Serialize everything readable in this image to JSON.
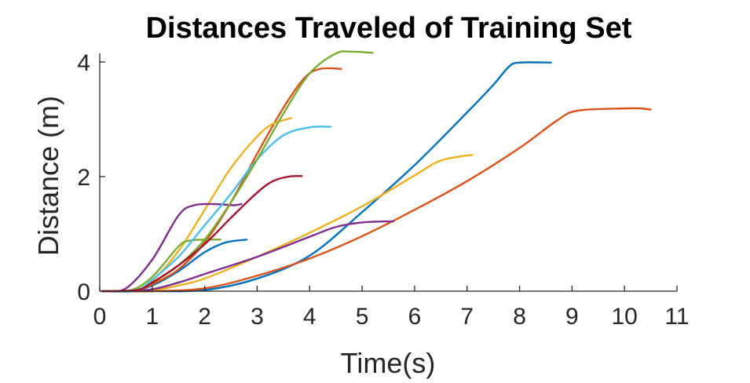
{
  "chart_data": {
    "type": "line",
    "title": "Distances Traveled of Training Set",
    "xlabel": "Time(s)",
    "ylabel": "Distance (m)",
    "xlim": [
      0,
      11
    ],
    "ylim": [
      0,
      4.2
    ],
    "xticks": [
      0,
      1,
      2,
      3,
      4,
      5,
      6,
      7,
      8,
      9,
      10,
      11
    ],
    "yticks": [
      0,
      2,
      4
    ],
    "grid": false,
    "legend": "none",
    "series": [
      {
        "color": "#0072BD",
        "x": [
          0.05,
          1.0,
          2.0,
          3.0,
          4.0,
          5.0,
          6.0,
          7.0,
          7.5,
          7.8,
          8.0,
          8.6
        ],
        "y": [
          0.0,
          0.0,
          0.02,
          0.22,
          0.62,
          1.38,
          2.2,
          3.12,
          3.6,
          3.92,
          3.99,
          3.99
        ]
      },
      {
        "color": "#D95319",
        "x": [
          0.05,
          1.0,
          2.0,
          3.0,
          4.0,
          5.0,
          6.0,
          7.0,
          8.0,
          8.7,
          9.1,
          10.0,
          10.3,
          10.5
        ],
        "y": [
          0.0,
          0.0,
          0.05,
          0.27,
          0.57,
          0.96,
          1.42,
          1.92,
          2.5,
          2.97,
          3.15,
          3.19,
          3.19,
          3.17
        ]
      },
      {
        "color": "#EDB120",
        "x": [
          0.05,
          1.0,
          1.5,
          2.0,
          3.0,
          4.0,
          5.0,
          6.0,
          6.5,
          7.1
        ],
        "y": [
          0.0,
          0.02,
          0.1,
          0.22,
          0.6,
          1.02,
          1.48,
          2.02,
          2.28,
          2.38
        ]
      },
      {
        "color": "#7E2F8E",
        "x": [
          0.05,
          0.9,
          1.5,
          2.0,
          3.0,
          4.0,
          4.5,
          5.0,
          5.6
        ],
        "y": [
          0.0,
          0.02,
          0.15,
          0.3,
          0.6,
          0.95,
          1.12,
          1.2,
          1.22
        ]
      },
      {
        "color": "#0072BD",
        "x": [
          0.05,
          0.6,
          1.0,
          1.5,
          2.0,
          2.4,
          2.8
        ],
        "y": [
          0.0,
          0.0,
          0.1,
          0.35,
          0.68,
          0.85,
          0.9
        ]
      },
      {
        "color": "#D95319",
        "x": [
          0.05,
          0.7,
          1.0,
          1.5,
          2.0,
          2.5,
          3.0,
          3.5,
          3.9,
          4.2,
          4.6
        ],
        "y": [
          0.0,
          0.02,
          0.12,
          0.38,
          0.85,
          1.55,
          2.4,
          3.2,
          3.72,
          3.88,
          3.88
        ]
      },
      {
        "color": "#EDB120",
        "x": [
          0.05,
          0.7,
          1.0,
          1.5,
          2.0,
          2.5,
          3.0,
          3.3,
          3.65
        ],
        "y": [
          0.0,
          0.02,
          0.18,
          0.7,
          1.42,
          2.15,
          2.7,
          2.92,
          3.02
        ]
      },
      {
        "color": "#7E2F8E",
        "x": [
          0.05,
          0.5,
          1.0,
          1.5,
          1.8,
          2.2,
          2.55,
          2.7
        ],
        "y": [
          0.0,
          0.05,
          0.55,
          1.32,
          1.5,
          1.52,
          1.5,
          1.52
        ]
      },
      {
        "color": "#77AC30",
        "x": [
          0.05,
          0.6,
          1.0,
          1.5,
          1.7,
          2.0,
          2.3
        ],
        "y": [
          0.0,
          0.02,
          0.25,
          0.78,
          0.88,
          0.9,
          0.9
        ]
      },
      {
        "color": "#4DBEEE",
        "x": [
          0.05,
          0.7,
          1.0,
          1.5,
          2.0,
          2.5,
          3.0,
          3.5,
          4.0,
          4.4
        ],
        "y": [
          0.0,
          0.02,
          0.2,
          0.6,
          1.15,
          1.7,
          2.3,
          2.72,
          2.86,
          2.87
        ]
      },
      {
        "color": "#77AC30",
        "x": [
          0.05,
          0.7,
          1.0,
          1.5,
          2.0,
          2.5,
          3.0,
          3.5,
          4.0,
          4.5,
          4.8,
          5.2
        ],
        "y": [
          0.0,
          0.02,
          0.15,
          0.45,
          0.9,
          1.55,
          2.3,
          3.1,
          3.8,
          4.15,
          4.18,
          4.16
        ]
      },
      {
        "color": "#A2142F",
        "x": [
          0.05,
          0.7,
          1.0,
          1.5,
          2.0,
          2.5,
          3.0,
          3.3,
          3.6,
          3.85
        ],
        "y": [
          0.0,
          0.02,
          0.15,
          0.45,
          0.82,
          1.28,
          1.72,
          1.92,
          2.0,
          2.01
        ]
      }
    ]
  }
}
